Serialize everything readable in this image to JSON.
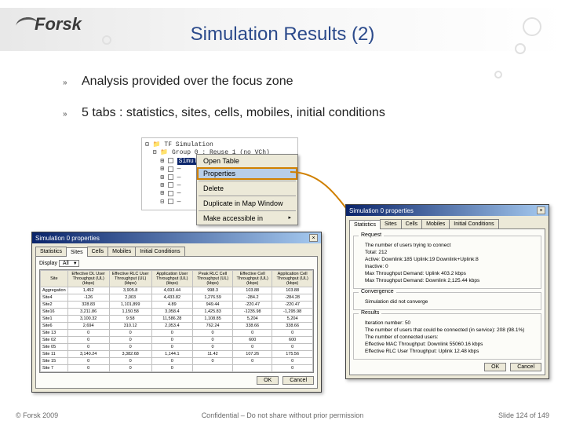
{
  "brand": {
    "name": "Forsk",
    "text_color": "#3a3a3a"
  },
  "title": {
    "text": "Simulation Results (2)",
    "color": "#2b4a8b",
    "fontsize": 24
  },
  "bullets": [
    "Analysis provided over the focus zone",
    "5 tabs : statistics, sites, cells, mobiles, initial conditions"
  ],
  "tree": {
    "root": "TF Simulation",
    "group": "Group 0 : Reuse 1 (no VCh)",
    "items": [
      "Simulation 0",
      "—",
      "—",
      "—",
      "—",
      "—"
    ],
    "selected_label": "Simulation 0"
  },
  "context_menu": {
    "items": [
      "Open Table",
      "Properties",
      "Delete",
      "Duplicate in Map Window",
      "Make accessible in"
    ],
    "highlight_index": 1
  },
  "dialog_sites": {
    "title": "Simulation 0 properties",
    "tabs": [
      "Statistics",
      "Sites",
      "Cells",
      "Mobiles",
      "Initial Conditions"
    ],
    "active_tab": 1,
    "dropdown_label": "Display",
    "dropdown_value": "All",
    "columns": [
      "Site",
      "Effective DL User Throughput (UL) (kbps)",
      "Effective RLC User Throughput (UL) (kbps)",
      "Application User Throughput (UL) (kbps)",
      "Peak RLC Cell Throughput (UL) (kbps)",
      "Effective Cell Throughput (UL) (kbps)",
      "Application Cell Throughput (UL) (kbps)"
    ],
    "rows": [
      [
        "Aggregation",
        "1,452",
        "3,905.8",
        "4,693.44",
        "998.3",
        "103.88",
        "103.88"
      ],
      [
        "Site4",
        "-126",
        "2,003",
        "4,433.82",
        "1,276.59",
        "-284.2",
        "-284.28"
      ],
      [
        "Site2",
        "328.83",
        "1,101,899",
        "4.89",
        "949.44",
        "-220.47",
        "-220.47"
      ],
      [
        "Site16",
        "3,211.86",
        "1,150.58",
        "3,058.4",
        "1,425.83",
        "-1235.98",
        "-1,295.98"
      ],
      [
        "Site1",
        "3,100.32",
        "9.58",
        "11,586.28",
        "1,108.85",
        "5,204",
        "5,204"
      ],
      [
        "Site6",
        "2,694",
        "310.12",
        "2,053.4",
        "762.24",
        "338.66",
        "338.66"
      ],
      [
        "Site 13",
        "0",
        "0",
        "0",
        "0",
        "0",
        "0"
      ],
      [
        "Site 02",
        "0",
        "0",
        "0",
        "0",
        "600",
        "600"
      ],
      [
        "Site 05",
        "0",
        "0",
        "0",
        "0",
        "0",
        "0"
      ],
      [
        "Site 11",
        "3,140.24",
        "3,382.68",
        "1,144.1",
        "11.42",
        "107.26",
        "175.56"
      ],
      [
        "Site 15",
        "0",
        "0",
        "0",
        "0",
        "0",
        "0"
      ],
      [
        "Site 7",
        "0",
        "0",
        "0",
        "",
        "",
        "0"
      ]
    ],
    "buttons": [
      "OK",
      "Cancel"
    ]
  },
  "dialog_stats": {
    "title": "Simulation 0 properties",
    "tabs": [
      "Statistics",
      "Sites",
      "Cells",
      "Mobiles",
      "Initial Conditions"
    ],
    "active_tab": 0,
    "request_box": {
      "legend": "Request",
      "lines": [
        "The number of users trying to connect",
        "   Total: 212",
        "   Active: Downlink:185  Uplink:19  Downlink+Uplink:8",
        "   Inactive: 0",
        "      Max Throughput Demand: Uplink 403.2 kbps",
        "      Max Throughput Demand: Downlink 2,125.44 kbps"
      ]
    },
    "conv_box": {
      "legend": "Convergence",
      "lines": [
        "Simulation did not converge"
      ]
    },
    "results_box": {
      "legend": "Results",
      "lines": [
        "Iteration number: 50",
        "",
        "The number of users that could be connected (in service): 208 (98.1%)",
        "",
        "The number of connected users:",
        "   Effective MAC Throughput: Downlink 55060.16 kbps",
        "   Effective RLC User Throughput: Uplink 12.48 kbps"
      ]
    },
    "buttons": [
      "OK",
      "Cancel"
    ]
  },
  "arrow": {
    "color": "#d08000"
  },
  "footer": {
    "left": "© Forsk 2009",
    "center": "Confidential – Do not share without prior permission",
    "right": "Slide 124 of 149"
  },
  "palette": {
    "title_blue": "#2b4a8b",
    "win_titlebar_start": "#0a246a",
    "win_titlebar_end": "#a6caf0",
    "win_face": "#ece9d8",
    "highlight": "#b8cee8",
    "orange": "#d08000"
  }
}
